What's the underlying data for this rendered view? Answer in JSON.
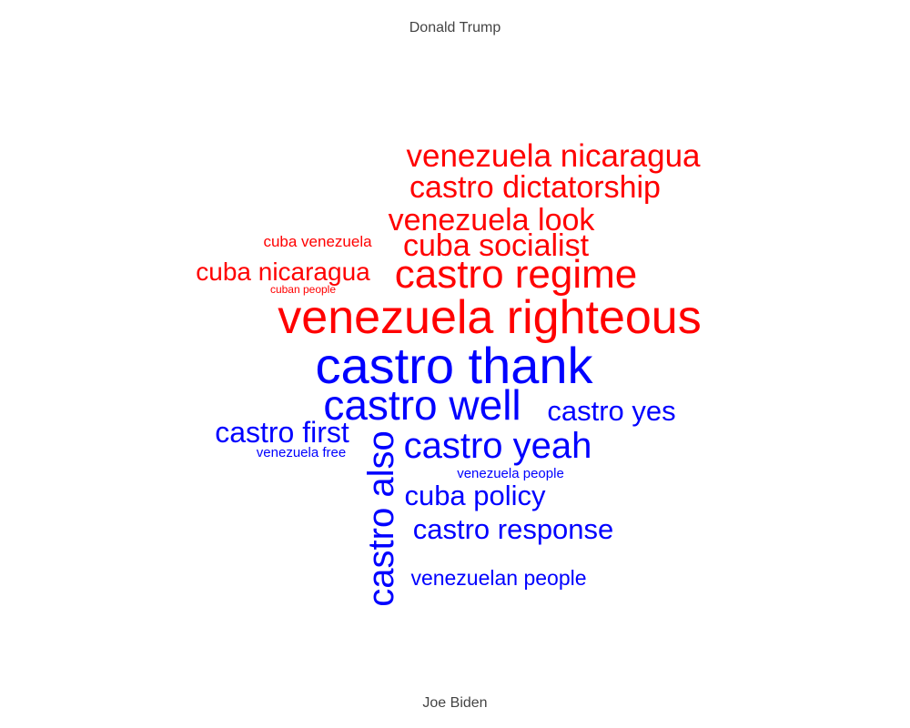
{
  "chart_data": {
    "type": "wordcloud",
    "top_label": "Donald Trump",
    "bottom_label": "Joe Biden",
    "groups": [
      {
        "name": "Donald Trump",
        "color": "#ff0000",
        "words": [
          "venezuela nicaragua",
          "castro dictatorship",
          "venezuela look",
          "cuba venezuela",
          "cuba socialist",
          "cuba nicaragua",
          "castro regime",
          "cuban people",
          "venezuela righteous"
        ]
      },
      {
        "name": "Joe Biden",
        "color": "#0000ff",
        "words": [
          "castro thank",
          "castro well",
          "castro yes",
          "castro first",
          "venezuela free",
          "castro yeah",
          "castro also",
          "venezuela people",
          "cuba policy",
          "castro response",
          "venezuelan people"
        ]
      }
    ]
  }
}
